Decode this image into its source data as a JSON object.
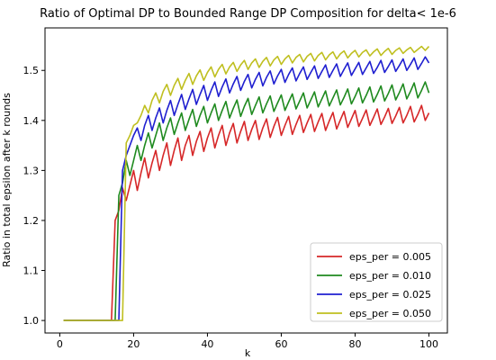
{
  "chart_data": {
    "type": "line",
    "title": "Ratio of Optimal DP to Bounded Range DP Composition for delta< 1e-6",
    "xlabel": "k",
    "ylabel": "Ratio in total epsilon after k rounds",
    "xlim": [
      -4,
      105
    ],
    "ylim": [
      0.975,
      1.585
    ],
    "xticks": [
      0,
      20,
      40,
      60,
      80,
      100
    ],
    "yticks": [
      1.0,
      1.1,
      1.2,
      1.3,
      1.4,
      1.5
    ],
    "grid": false,
    "legend_position": "lower-right",
    "series": [
      {
        "name": "eps_per = 0.005",
        "color": "#d62728",
        "x": [
          1,
          14,
          15,
          16,
          17,
          18,
          19,
          20,
          21,
          22,
          23,
          24,
          25,
          26,
          27,
          28,
          29,
          30,
          31,
          32,
          33,
          34,
          35,
          36,
          37,
          38,
          39,
          40,
          41,
          42,
          43,
          44,
          45,
          46,
          47,
          48,
          49,
          50,
          51,
          52,
          53,
          54,
          55,
          56,
          57,
          58,
          59,
          60,
          61,
          62,
          63,
          64,
          65,
          66,
          67,
          68,
          69,
          70,
          71,
          72,
          73,
          74,
          75,
          76,
          77,
          78,
          79,
          80,
          81,
          82,
          83,
          84,
          85,
          86,
          87,
          88,
          89,
          90,
          91,
          92,
          93,
          94,
          95,
          96,
          97,
          98,
          99,
          100
        ],
        "y": [
          1.0,
          1.0,
          1.2,
          1.22,
          1.265,
          1.24,
          1.27,
          1.3,
          1.26,
          1.295,
          1.325,
          1.285,
          1.315,
          1.34,
          1.3,
          1.33,
          1.355,
          1.31,
          1.34,
          1.365,
          1.32,
          1.35,
          1.37,
          1.33,
          1.358,
          1.378,
          1.338,
          1.365,
          1.385,
          1.345,
          1.37,
          1.39,
          1.35,
          1.375,
          1.394,
          1.355,
          1.378,
          1.398,
          1.36,
          1.382,
          1.4,
          1.362,
          1.385,
          1.403,
          1.366,
          1.388,
          1.406,
          1.37,
          1.39,
          1.408,
          1.372,
          1.392,
          1.41,
          1.376,
          1.395,
          1.412,
          1.378,
          1.397,
          1.414,
          1.38,
          1.399,
          1.416,
          1.383,
          1.401,
          1.418,
          1.386,
          1.403,
          1.42,
          1.388,
          1.404,
          1.421,
          1.39,
          1.406,
          1.423,
          1.392,
          1.407,
          1.424,
          1.394,
          1.409,
          1.426,
          1.395,
          1.41,
          1.428,
          1.397,
          1.412,
          1.43,
          1.4,
          1.415
        ]
      },
      {
        "name": "eps_per = 0.010",
        "color": "#1f8a1f",
        "x": [
          1,
          15,
          16,
          17,
          18,
          19,
          20,
          21,
          22,
          23,
          24,
          25,
          26,
          27,
          28,
          29,
          30,
          31,
          32,
          33,
          34,
          35,
          36,
          37,
          38,
          39,
          40,
          41,
          42,
          43,
          44,
          45,
          46,
          47,
          48,
          49,
          50,
          51,
          52,
          53,
          54,
          55,
          56,
          57,
          58,
          59,
          60,
          61,
          62,
          63,
          64,
          65,
          66,
          67,
          68,
          69,
          70,
          71,
          72,
          73,
          74,
          75,
          76,
          77,
          78,
          79,
          80,
          81,
          82,
          83,
          84,
          85,
          86,
          87,
          88,
          89,
          90,
          91,
          92,
          93,
          94,
          95,
          96,
          97,
          98,
          99,
          100
        ],
        "y": [
          1.0,
          1.0,
          1.25,
          1.275,
          1.32,
          1.29,
          1.32,
          1.35,
          1.32,
          1.35,
          1.375,
          1.345,
          1.37,
          1.395,
          1.36,
          1.385,
          1.405,
          1.372,
          1.395,
          1.415,
          1.38,
          1.402,
          1.422,
          1.388,
          1.41,
          1.428,
          1.395,
          1.415,
          1.433,
          1.4,
          1.42,
          1.438,
          1.405,
          1.424,
          1.441,
          1.408,
          1.428,
          1.444,
          1.412,
          1.43,
          1.447,
          1.415,
          1.433,
          1.449,
          1.418,
          1.435,
          1.451,
          1.42,
          1.437,
          1.453,
          1.423,
          1.439,
          1.455,
          1.425,
          1.441,
          1.457,
          1.427,
          1.443,
          1.459,
          1.429,
          1.445,
          1.461,
          1.431,
          1.446,
          1.463,
          1.433,
          1.448,
          1.465,
          1.435,
          1.45,
          1.467,
          1.437,
          1.452,
          1.469,
          1.439,
          1.454,
          1.471,
          1.441,
          1.456,
          1.473,
          1.443,
          1.458,
          1.475,
          1.445,
          1.46,
          1.477,
          1.455
        ]
      },
      {
        "name": "eps_per = 0.025",
        "color": "#1f1fd0",
        "x": [
          1,
          16,
          17,
          18,
          19,
          20,
          21,
          22,
          23,
          24,
          25,
          26,
          27,
          28,
          29,
          30,
          31,
          32,
          33,
          34,
          35,
          36,
          37,
          38,
          39,
          40,
          41,
          42,
          43,
          44,
          45,
          46,
          47,
          48,
          49,
          50,
          51,
          52,
          53,
          54,
          55,
          56,
          57,
          58,
          59,
          60,
          61,
          62,
          63,
          64,
          65,
          66,
          67,
          68,
          69,
          70,
          71,
          72,
          73,
          74,
          75,
          76,
          77,
          78,
          79,
          80,
          81,
          82,
          83,
          84,
          85,
          86,
          87,
          88,
          89,
          90,
          91,
          92,
          93,
          94,
          95,
          96,
          97,
          98,
          99,
          100
        ],
        "y": [
          1.0,
          1.0,
          1.3,
          1.33,
          1.35,
          1.37,
          1.385,
          1.36,
          1.39,
          1.41,
          1.38,
          1.405,
          1.425,
          1.395,
          1.42,
          1.44,
          1.41,
          1.432,
          1.452,
          1.422,
          1.443,
          1.462,
          1.432,
          1.452,
          1.47,
          1.44,
          1.46,
          1.477,
          1.448,
          1.467,
          1.483,
          1.455,
          1.473,
          1.488,
          1.46,
          1.478,
          1.492,
          1.465,
          1.482,
          1.496,
          1.469,
          1.486,
          1.499,
          1.473,
          1.489,
          1.502,
          1.476,
          1.492,
          1.505,
          1.479,
          1.494,
          1.507,
          1.482,
          1.496,
          1.509,
          1.484,
          1.498,
          1.511,
          1.486,
          1.5,
          1.513,
          1.488,
          1.502,
          1.515,
          1.49,
          1.503,
          1.516,
          1.492,
          1.505,
          1.518,
          1.494,
          1.506,
          1.52,
          1.496,
          1.508,
          1.521,
          1.498,
          1.51,
          1.523,
          1.5,
          1.512,
          1.525,
          1.502,
          1.514,
          1.527,
          1.515
        ]
      },
      {
        "name": "eps_per = 0.050",
        "color": "#bfbf1f",
        "x": [
          1,
          17,
          18,
          19,
          20,
          21,
          22,
          23,
          24,
          25,
          26,
          27,
          28,
          29,
          30,
          31,
          32,
          33,
          34,
          35,
          36,
          37,
          38,
          39,
          40,
          41,
          42,
          43,
          44,
          45,
          46,
          47,
          48,
          49,
          50,
          51,
          52,
          53,
          54,
          55,
          56,
          57,
          58,
          59,
          60,
          61,
          62,
          63,
          64,
          65,
          66,
          67,
          68,
          69,
          70,
          71,
          72,
          73,
          74,
          75,
          76,
          77,
          78,
          79,
          80,
          81,
          82,
          83,
          84,
          85,
          86,
          87,
          88,
          89,
          90,
          91,
          92,
          93,
          94,
          95,
          96,
          97,
          98,
          99,
          100
        ],
        "y": [
          1.0,
          1.0,
          1.355,
          1.37,
          1.39,
          1.395,
          1.41,
          1.43,
          1.415,
          1.44,
          1.455,
          1.435,
          1.458,
          1.472,
          1.45,
          1.47,
          1.484,
          1.462,
          1.48,
          1.494,
          1.472,
          1.489,
          1.501,
          1.48,
          1.496,
          1.507,
          1.487,
          1.502,
          1.512,
          1.493,
          1.507,
          1.516,
          1.498,
          1.511,
          1.52,
          1.502,
          1.515,
          1.523,
          1.506,
          1.518,
          1.526,
          1.509,
          1.521,
          1.528,
          1.512,
          1.523,
          1.53,
          1.515,
          1.526,
          1.532,
          1.517,
          1.528,
          1.534,
          1.519,
          1.53,
          1.536,
          1.521,
          1.531,
          1.537,
          1.523,
          1.533,
          1.539,
          1.525,
          1.534,
          1.54,
          1.527,
          1.536,
          1.541,
          1.529,
          1.537,
          1.543,
          1.53,
          1.538,
          1.544,
          1.532,
          1.54,
          1.545,
          1.534,
          1.541,
          1.546,
          1.536,
          1.542,
          1.548,
          1.54,
          1.548
        ]
      }
    ]
  }
}
